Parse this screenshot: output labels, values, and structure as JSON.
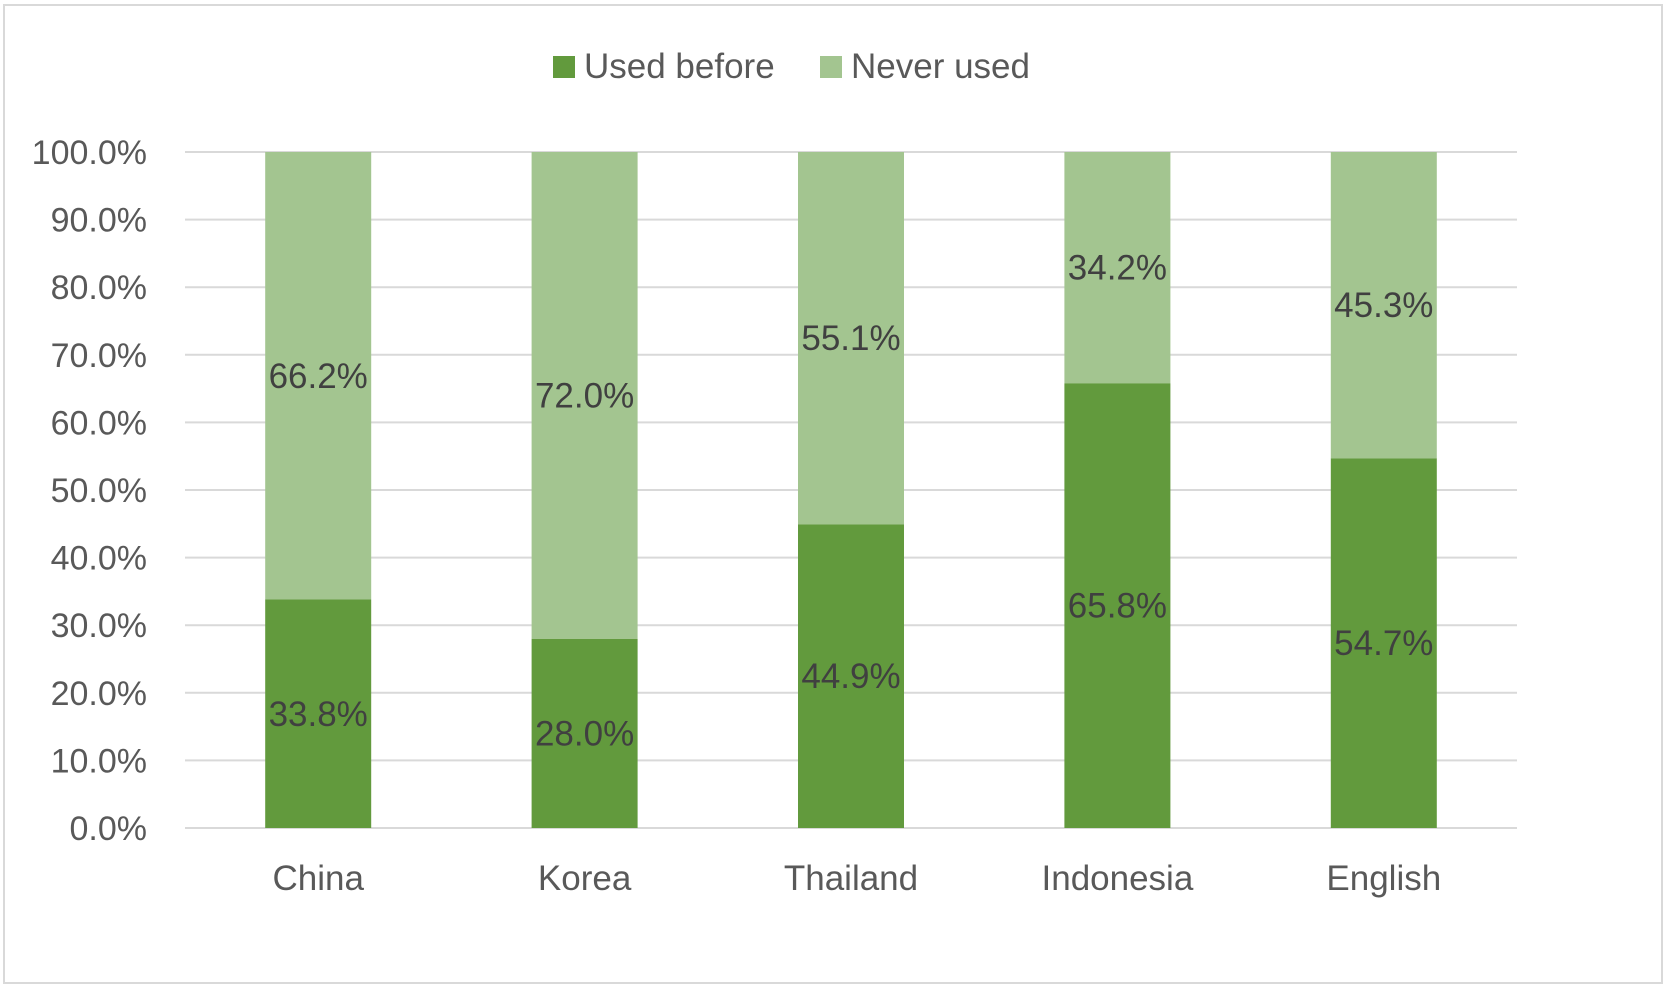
{
  "chart_data": {
    "type": "bar",
    "stacked": true,
    "categories": [
      "China",
      "Korea",
      "Thailand",
      "Indonesia",
      "English"
    ],
    "series": [
      {
        "name": "Used before",
        "values": [
          33.8,
          28.0,
          44.9,
          65.8,
          54.7
        ],
        "labels": [
          "33.8%",
          "28.0%",
          "44.9%",
          "65.8%",
          "54.7%"
        ],
        "color": "#629a3d"
      },
      {
        "name": "Never used",
        "values": [
          66.2,
          72.0,
          55.1,
          34.2,
          45.3
        ],
        "labels": [
          "66.2%",
          "72.0%",
          "55.1%",
          "34.2%",
          "45.3%"
        ],
        "color": "#a3c590"
      }
    ],
    "ylim": [
      0,
      100
    ],
    "yticks": [
      0,
      10,
      20,
      30,
      40,
      50,
      60,
      70,
      80,
      90,
      100
    ],
    "ytick_labels": [
      "0.0%",
      "10.0%",
      "20.0%",
      "30.0%",
      "40.0%",
      "50.0%",
      "60.0%",
      "70.0%",
      "80.0%",
      "90.0%",
      "100.0%"
    ],
    "grid": true,
    "legend_position": "top-center",
    "gridline_color": "#d9d9d9"
  }
}
